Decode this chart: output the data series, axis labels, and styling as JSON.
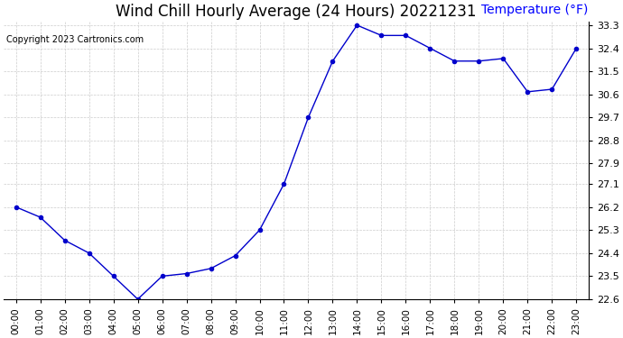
{
  "title": "Wind Chill Hourly Average (24 Hours) 20221231",
  "copyright_text": "Copyright 2023 Cartronics.com",
  "ylabel": "Temperature (°F)",
  "hours": [
    "00:00",
    "01:00",
    "02:00",
    "03:00",
    "04:00",
    "05:00",
    "06:00",
    "07:00",
    "08:00",
    "09:00",
    "10:00",
    "11:00",
    "12:00",
    "13:00",
    "14:00",
    "15:00",
    "16:00",
    "17:00",
    "18:00",
    "19:00",
    "20:00",
    "21:00",
    "22:00",
    "23:00"
  ],
  "values": [
    26.2,
    25.8,
    24.9,
    24.4,
    23.5,
    22.6,
    23.5,
    23.6,
    23.8,
    24.3,
    25.3,
    27.1,
    29.7,
    31.9,
    33.3,
    32.9,
    32.9,
    32.4,
    31.9,
    31.9,
    32.0,
    30.7,
    30.8,
    32.4
  ],
  "ylim_min": 22.6,
  "ylim_max": 33.3,
  "yticks": [
    22.6,
    23.5,
    24.4,
    25.3,
    26.2,
    27.1,
    27.9,
    28.8,
    29.7,
    30.6,
    31.5,
    32.4,
    33.3
  ],
  "line_color": "#0000cc",
  "marker_size": 3,
  "title_fontsize": 12,
  "background_color": "#ffffff",
  "plot_bg_color": "#ffffff",
  "grid_color": "#cccccc",
  "copyright_color": "#000000",
  "ylabel_color": "#0000ff",
  "ylabel_fontsize": 10,
  "copyright_fontsize": 7,
  "tick_fontsize": 7.5,
  "ytick_fontsize": 8
}
